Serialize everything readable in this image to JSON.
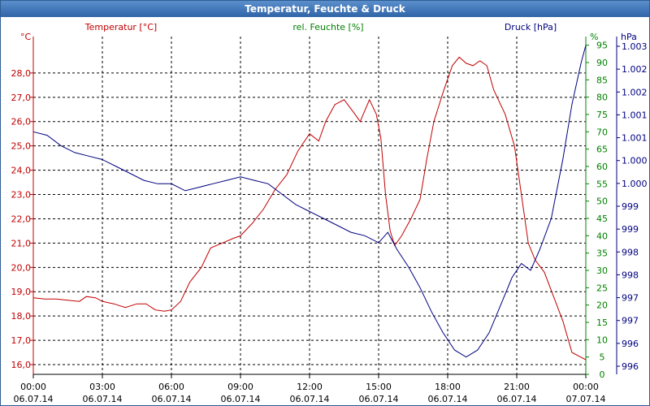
{
  "window": {
    "title": "Temperatur, Feuchte & Druck"
  },
  "colors": {
    "temperature": "#c00000",
    "humidity": "#008000",
    "pressure": "#000080",
    "grid": "#000000",
    "text": "#000000"
  },
  "chart_data": {
    "type": "line",
    "title": "Temperatur, Feuchte & Druck",
    "x_ticks": [
      {
        "time": "00:00",
        "date": "06.07.14"
      },
      {
        "time": "03:00",
        "date": "06.07.14"
      },
      {
        "time": "06:00",
        "date": "06.07.14"
      },
      {
        "time": "09:00",
        "date": "06.07.14"
      },
      {
        "time": "12:00",
        "date": "06.07.14"
      },
      {
        "time": "15:00",
        "date": "06.07.14"
      },
      {
        "time": "18:00",
        "date": "06.07.14"
      },
      {
        "time": "21:00",
        "date": "06.07.14"
      },
      {
        "time": "00:00",
        "date": "07.07.14"
      }
    ],
    "x_range_hours": [
      0,
      24
    ],
    "axes": {
      "temperature": {
        "label": "Temperatur [°C]",
        "unit": "°C",
        "range": [
          15.6,
          29.5
        ],
        "ticks": [
          "16,0",
          "17,0",
          "18,0",
          "19,0",
          "20,0",
          "21,0",
          "22,0",
          "23,0",
          "24,0",
          "25,0",
          "26,0",
          "27,0",
          "28,0"
        ],
        "tick_values": [
          16,
          17,
          18,
          19,
          20,
          21,
          22,
          23,
          24,
          25,
          26,
          27,
          28
        ]
      },
      "humidity": {
        "label": "rel. Feuchte [%]",
        "unit": "%",
        "range": [
          0,
          97.5
        ],
        "ticks": [
          "0",
          "5",
          "10",
          "15",
          "20",
          "25",
          "30",
          "35",
          "40",
          "45",
          "50",
          "55",
          "60",
          "65",
          "70",
          "75",
          "80",
          "85",
          "90",
          "95"
        ],
        "tick_values": [
          0,
          5,
          10,
          15,
          20,
          25,
          30,
          35,
          40,
          45,
          50,
          55,
          60,
          65,
          70,
          75,
          80,
          85,
          90,
          95
        ]
      },
      "pressure": {
        "label": "Druck [hPa]",
        "unit": "hPa",
        "ticks": [
          "996",
          "996",
          "997",
          "997",
          "998",
          "998",
          "999",
          "999",
          "1.000",
          "1.000",
          "1.001",
          "1.001",
          "1.002",
          "1.002",
          "1.003"
        ]
      }
    },
    "series": [
      {
        "name": "Temperatur",
        "axis": "temperature",
        "points": [
          [
            0,
            18.75
          ],
          [
            0.5,
            18.7
          ],
          [
            1,
            18.7
          ],
          [
            1.5,
            18.65
          ],
          [
            2,
            18.6
          ],
          [
            2.3,
            18.8
          ],
          [
            2.7,
            18.75
          ],
          [
            3,
            18.6
          ],
          [
            3.5,
            18.5
          ],
          [
            4,
            18.35
          ],
          [
            4.5,
            18.5
          ],
          [
            4.9,
            18.5
          ],
          [
            5.3,
            18.25
          ],
          [
            5.7,
            18.2
          ],
          [
            6,
            18.25
          ],
          [
            6.4,
            18.6
          ],
          [
            6.8,
            19.4
          ],
          [
            7.3,
            20.0
          ],
          [
            7.7,
            20.8
          ],
          [
            8.2,
            21.0
          ],
          [
            8.7,
            21.2
          ],
          [
            9.0,
            21.3
          ],
          [
            9.5,
            21.8
          ],
          [
            10.0,
            22.4
          ],
          [
            10.5,
            23.2
          ],
          [
            11.0,
            23.8
          ],
          [
            11.5,
            24.8
          ],
          [
            12.0,
            25.5
          ],
          [
            12.4,
            25.2
          ],
          [
            12.7,
            26.0
          ],
          [
            13.1,
            26.7
          ],
          [
            13.5,
            26.9
          ],
          [
            13.9,
            26.4
          ],
          [
            14.2,
            26.0
          ],
          [
            14.6,
            26.9
          ],
          [
            14.9,
            26.3
          ],
          [
            15.1,
            25.3
          ],
          [
            15.3,
            23.0
          ],
          [
            15.5,
            21.5
          ],
          [
            15.7,
            20.9
          ],
          [
            16.0,
            21.3
          ],
          [
            16.4,
            22.0
          ],
          [
            16.8,
            22.8
          ],
          [
            17.1,
            24.5
          ],
          [
            17.4,
            26.0
          ],
          [
            17.8,
            27.2
          ],
          [
            18.2,
            28.3
          ],
          [
            18.5,
            28.65
          ],
          [
            18.8,
            28.4
          ],
          [
            19.1,
            28.3
          ],
          [
            19.4,
            28.5
          ],
          [
            19.7,
            28.3
          ],
          [
            20.0,
            27.3
          ],
          [
            20.5,
            26.3
          ],
          [
            20.9,
            25.0
          ],
          [
            21.2,
            23.0
          ],
          [
            21.5,
            21.0
          ],
          [
            21.8,
            20.3
          ],
          [
            22.2,
            19.8
          ],
          [
            22.6,
            18.8
          ],
          [
            23.0,
            17.8
          ],
          [
            23.4,
            16.5
          ],
          [
            23.8,
            16.3
          ],
          [
            24.0,
            16.2
          ]
        ]
      },
      {
        "name": "rel. Feuchte",
        "axis": "humidity",
        "points": []
      },
      {
        "name": "Druck",
        "axis": "pressure",
        "points_pct": [
          [
            0,
            70
          ],
          [
            0.6,
            69
          ],
          [
            1.2,
            66
          ],
          [
            1.8,
            64
          ],
          [
            2.4,
            63
          ],
          [
            3.0,
            62
          ],
          [
            3.6,
            60
          ],
          [
            4.2,
            58
          ],
          [
            4.8,
            56
          ],
          [
            5.4,
            55
          ],
          [
            6.0,
            55
          ],
          [
            6.6,
            53
          ],
          [
            7.2,
            54
          ],
          [
            7.8,
            55
          ],
          [
            8.4,
            56
          ],
          [
            9.0,
            57
          ],
          [
            9.6,
            56
          ],
          [
            10.2,
            55
          ],
          [
            10.8,
            52
          ],
          [
            11.4,
            49
          ],
          [
            12.0,
            47
          ],
          [
            12.6,
            45
          ],
          [
            13.2,
            43
          ],
          [
            13.8,
            41
          ],
          [
            14.4,
            40
          ],
          [
            15.0,
            38
          ],
          [
            15.4,
            41
          ],
          [
            15.8,
            36
          ],
          [
            16.3,
            31
          ],
          [
            16.8,
            25
          ],
          [
            17.3,
            18
          ],
          [
            17.8,
            12
          ],
          [
            18.3,
            7
          ],
          [
            18.8,
            5
          ],
          [
            19.3,
            7
          ],
          [
            19.8,
            12
          ],
          [
            20.3,
            20
          ],
          [
            20.8,
            28
          ],
          [
            21.2,
            32
          ],
          [
            21.6,
            30
          ],
          [
            22.0,
            36
          ],
          [
            22.5,
            45
          ],
          [
            23.0,
            62
          ],
          [
            23.4,
            78
          ],
          [
            23.8,
            90
          ],
          [
            24.0,
            95
          ]
        ]
      }
    ]
  }
}
